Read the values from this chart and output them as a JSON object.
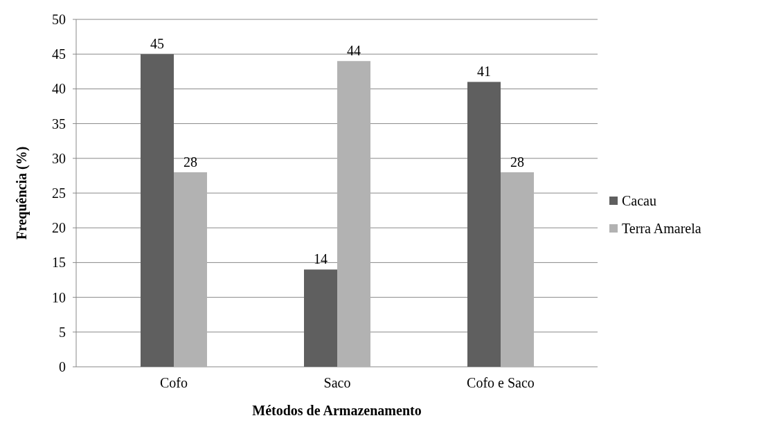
{
  "chart_data": {
    "type": "bar",
    "xlabel": "Métodos de Armazenamento",
    "ylabel": "Frequência (%)",
    "categories": [
      "Cofo",
      "Saco",
      "Cofo e Saco"
    ],
    "series": [
      {
        "name": "Cacau",
        "color": "#5f5f5f",
        "values": [
          45,
          14,
          41
        ]
      },
      {
        "name": "Terra Amarela",
        "color": "#b2b2b2",
        "values": [
          28,
          44,
          28
        ]
      }
    ],
    "ylim": [
      0,
      50
    ],
    "yticks": [
      0,
      5,
      10,
      15,
      20,
      25,
      30,
      35,
      40,
      45,
      50
    ],
    "grid": "y",
    "legend": "right",
    "data_labels": true
  }
}
